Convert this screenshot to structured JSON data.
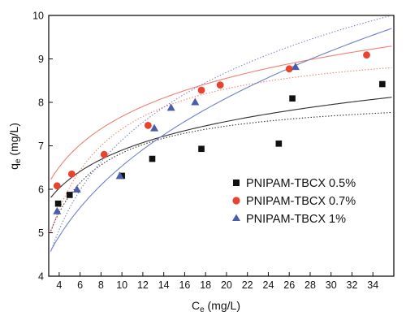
{
  "chart_data": {
    "type": "scatter",
    "xlabel": "C",
    "xlabel_sub": "e",
    "xlabel_unit": " (mg/L)",
    "ylabel": "q",
    "ylabel_sub": "e",
    "ylabel_unit": " (mg/L)",
    "xlim": [
      3,
      36
    ],
    "ylim": [
      4,
      10
    ],
    "x_ticks": [
      4,
      6,
      8,
      10,
      12,
      14,
      16,
      18,
      20,
      22,
      24,
      26,
      28,
      30,
      32,
      34
    ],
    "y_ticks": [
      4,
      5,
      6,
      7,
      8,
      9,
      10
    ],
    "legend_position": "bottom-right",
    "series": [
      {
        "name": "PNIPAM-TBCX 0.5%",
        "marker": "square",
        "color": "#111111",
        "x": [
          3.9,
          5.0,
          10.0,
          12.9,
          17.6,
          25.0,
          26.3,
          34.9
        ],
        "y": [
          5.67,
          5.87,
          6.31,
          6.7,
          6.93,
          7.05,
          8.09,
          8.42
        ],
        "fit_solid": {
          "model": "log",
          "a": 4.7,
          "b": 0.955
        },
        "fit_dotted": {
          "model": "langmuir",
          "qm": 8.2,
          "K": 0.5
        },
        "fit_color": "#2d2d2d"
      },
      {
        "name": "PNIPAM-TBCX 0.7%",
        "marker": "circle",
        "color": "#e8432e",
        "x": [
          3.8,
          5.2,
          8.3,
          12.5,
          17.6,
          19.4,
          26.0,
          33.4
        ],
        "y": [
          6.08,
          6.35,
          6.8,
          7.47,
          8.28,
          8.4,
          8.77,
          9.09
        ],
        "fit_solid": {
          "model": "log",
          "a": 4.75,
          "b": 1.27
        },
        "fit_dotted": {
          "model": "langmuir",
          "qm": 9.5,
          "K": 0.35
        },
        "fit_color": "#f08070"
      },
      {
        "name": "PNIPAM-TBCX 1%",
        "marker": "triangle",
        "color": "#4a5da8",
        "x": [
          3.8,
          5.7,
          9.8,
          13.1,
          14.7,
          17.0,
          26.6
        ],
        "y": [
          5.5,
          6.0,
          6.31,
          7.41,
          7.88,
          8.01,
          8.82
        ],
        "fit_solid": {
          "model": "power",
          "k": 3.2,
          "n": 0.31
        },
        "fit_dotted": {
          "model": "log",
          "a": 1.95,
          "b": 2.25
        },
        "fit_color": "#7080c8"
      }
    ]
  }
}
